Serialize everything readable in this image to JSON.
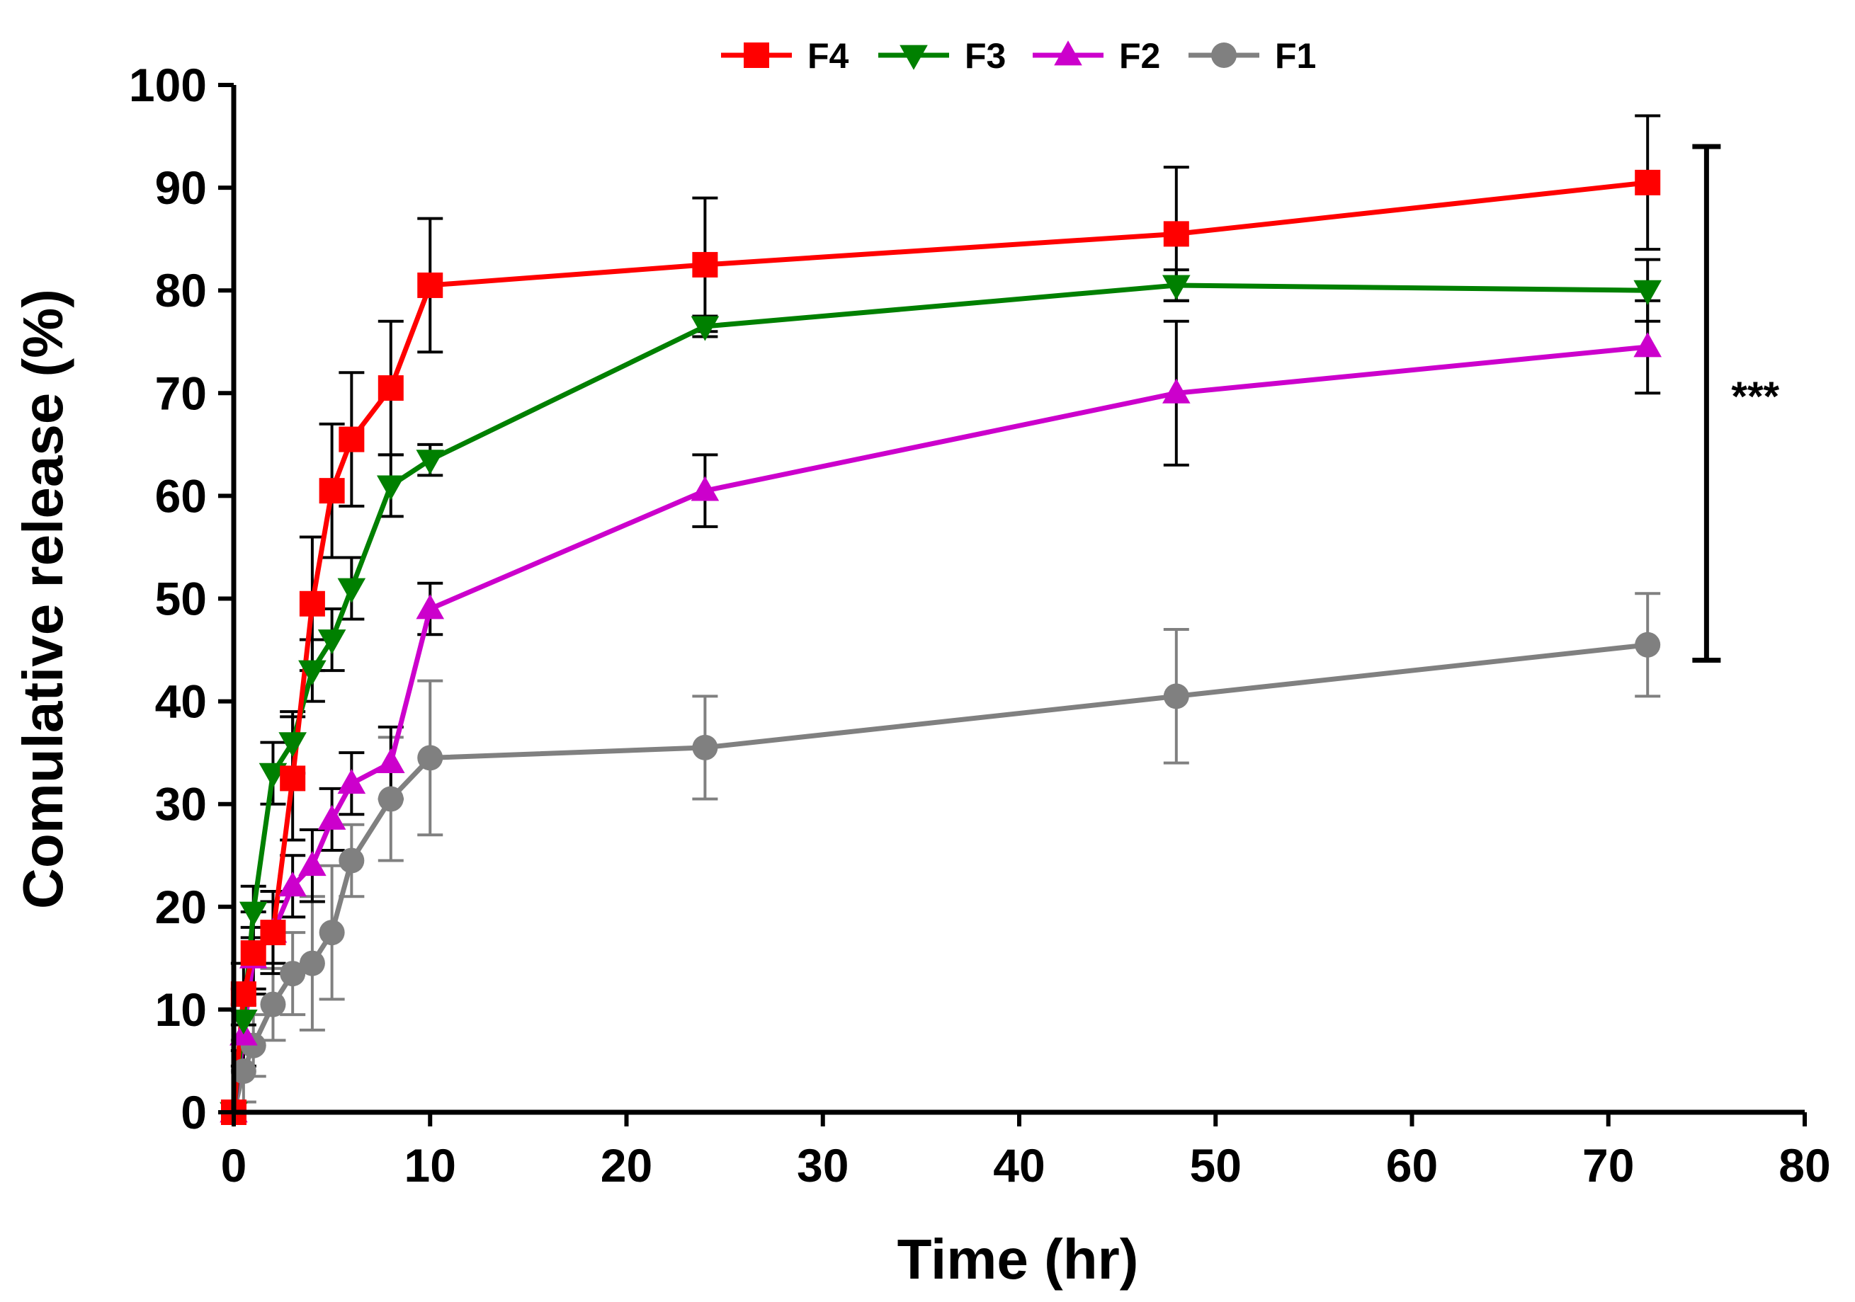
{
  "chart_data": {
    "type": "line",
    "xlabel": "Time (hr)",
    "ylabel": "Comulative release (%)",
    "xlim": [
      0,
      80
    ],
    "ylim": [
      0,
      100
    ],
    "xticks": [
      0,
      10,
      20,
      30,
      40,
      50,
      60,
      70,
      80
    ],
    "yticks": [
      0,
      10,
      20,
      30,
      40,
      50,
      60,
      70,
      80,
      90,
      100
    ],
    "grid": false,
    "legend_position": "top-center",
    "series": [
      {
        "name": "F4",
        "color": "#ff0000",
        "marker": "square",
        "error_color": "#000000",
        "x": [
          0,
          0.5,
          1,
          2,
          3,
          4,
          5,
          6,
          8,
          10,
          24,
          48,
          72
        ],
        "y": [
          0,
          11.5,
          15.5,
          17.5,
          32.5,
          49.5,
          60.5,
          65.5,
          70.5,
          80.5,
          82.5,
          85.5,
          90.5
        ],
        "error": [
          0,
          3,
          4,
          4,
          6,
          6.5,
          6.5,
          6.5,
          6.5,
          6.5,
          6.5,
          6.5,
          6.5
        ]
      },
      {
        "name": "F3",
        "color": "#008000",
        "marker": "triangle-down",
        "error_color": "#000000",
        "x": [
          0,
          0.5,
          1,
          2,
          3,
          4,
          5,
          6,
          8,
          10,
          24,
          48,
          72
        ],
        "y": [
          0,
          9,
          19.5,
          33,
          36,
          43,
          46,
          51,
          61,
          63.5,
          76.5,
          80.5,
          80
        ],
        "error": [
          0,
          3,
          2.5,
          3,
          3,
          3,
          3,
          3,
          3,
          1.5,
          1,
          1.5,
          3
        ]
      },
      {
        "name": "F2",
        "color": "#cc00cc",
        "marker": "triangle-up",
        "error_color": "#000000",
        "x": [
          0,
          0.5,
          1,
          2,
          3,
          4,
          5,
          6,
          8,
          10,
          24,
          48,
          72
        ],
        "y": [
          0,
          7.5,
          15,
          17.5,
          22,
          24,
          28.5,
          32,
          34,
          49,
          60.5,
          70,
          74.5
        ],
        "error": [
          0,
          3,
          3,
          3,
          3,
          3.5,
          3,
          3,
          3.5,
          2.5,
          3.5,
          7,
          4.5
        ]
      },
      {
        "name": "F1",
        "color": "#808080",
        "marker": "circle",
        "error_color": "#808080",
        "x": [
          0,
          0.5,
          1,
          2,
          3,
          4,
          5,
          6,
          8,
          10,
          24,
          48,
          72
        ],
        "y": [
          0,
          4,
          6.5,
          10.5,
          13.5,
          14.5,
          17.5,
          24.5,
          30.5,
          34.5,
          35.5,
          40.5,
          45.5
        ],
        "error": [
          0,
          3,
          3,
          3.5,
          4,
          6.5,
          6.5,
          3.5,
          6,
          7.5,
          5,
          6.5,
          5
        ]
      }
    ],
    "annotations": [
      {
        "type": "bracket",
        "x": 75,
        "y_range": [
          44,
          94
        ],
        "label": "***"
      }
    ]
  }
}
